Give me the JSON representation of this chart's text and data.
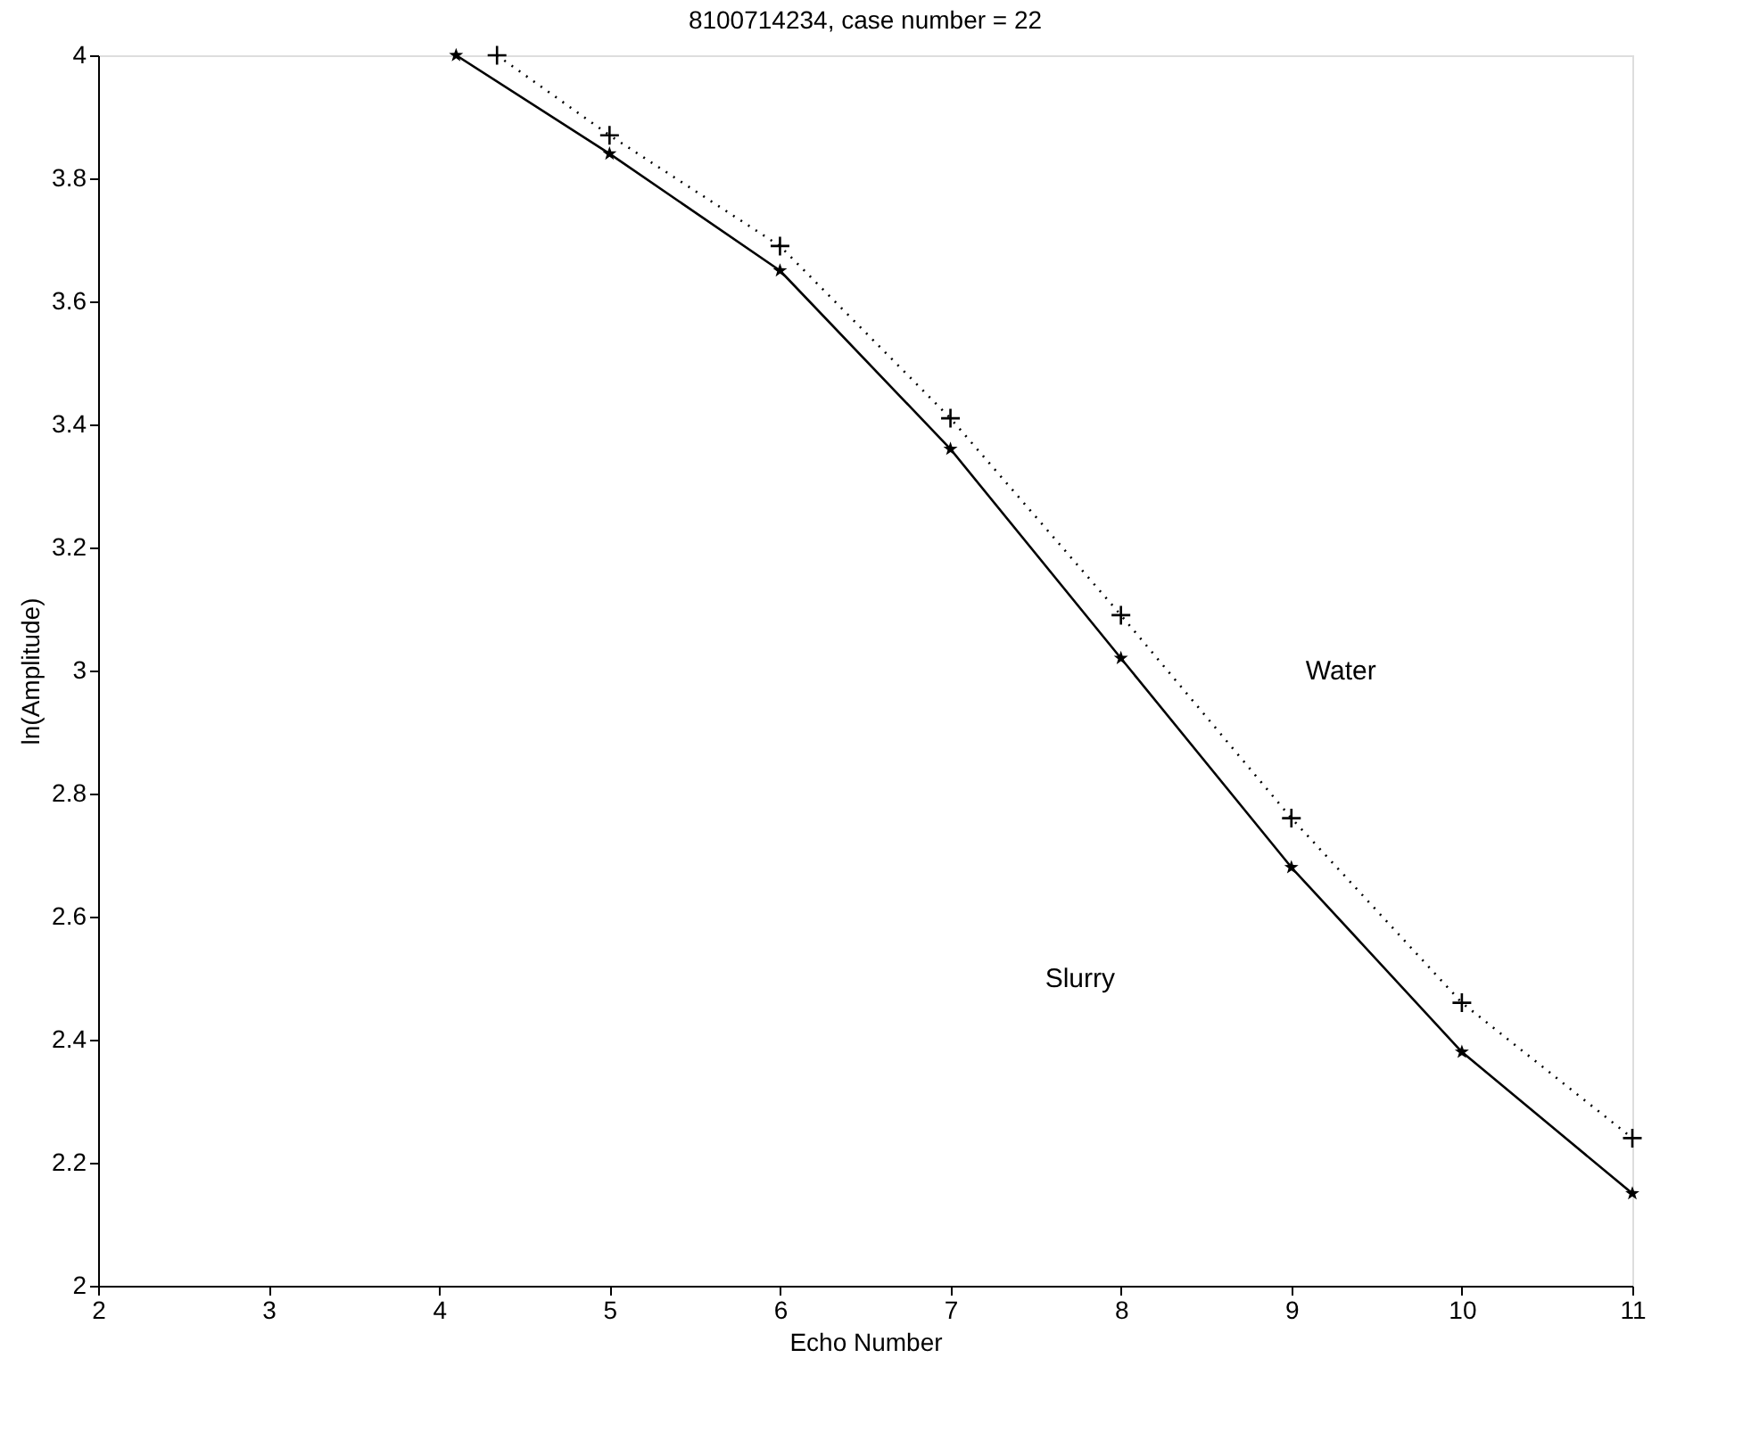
{
  "chart_data": {
    "type": "line",
    "title": "8100714234, case number = 22",
    "xlabel": "Echo Number",
    "ylabel": "ln(Amplitude)",
    "xlim": [
      2,
      11
    ],
    "xticks": [
      2,
      3,
      4,
      5,
      6,
      7,
      8,
      9,
      10,
      11
    ],
    "ylim": [
      2,
      4
    ],
    "yticks": [
      2,
      2.2,
      2.4,
      2.6,
      2.8,
      3,
      3.2,
      3.4,
      3.6,
      3.8,
      4
    ],
    "series": [
      {
        "color": "#000000",
        "marker": "star",
        "line_style": "solid",
        "x": [
          4.1,
          5,
          6,
          7,
          8,
          9,
          10,
          11
        ],
        "values": [
          4.0,
          3.84,
          3.65,
          3.36,
          3.02,
          2.68,
          2.38,
          2.15
        ]
      },
      {
        "color": "#000000",
        "marker": "cross",
        "line_style": "dotted",
        "x": [
          4.34,
          5,
          6,
          7,
          8,
          9,
          10,
          11
        ],
        "values": [
          4.0,
          3.87,
          3.69,
          3.41,
          3.09,
          2.76,
          2.46,
          2.24
        ]
      }
    ],
    "annotations": [
      "Water",
      "Slurry"
    ]
  }
}
